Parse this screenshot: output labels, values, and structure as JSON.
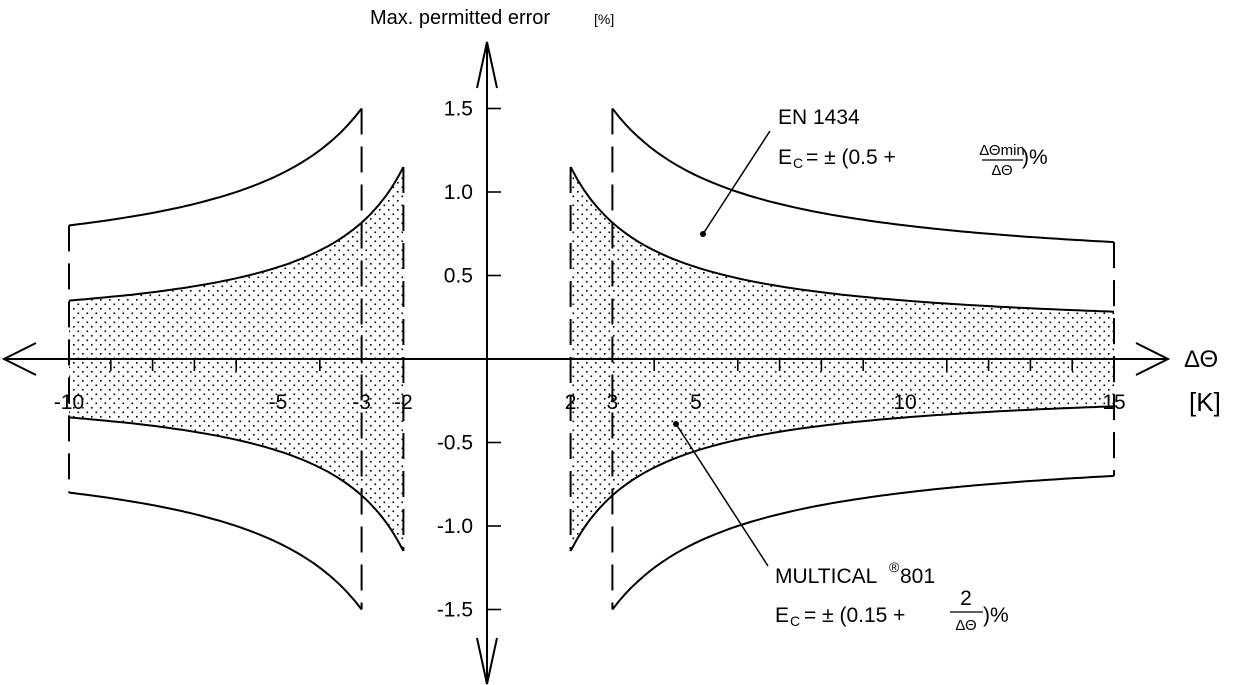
{
  "chart_data": {
    "type": "line",
    "title": "",
    "ylabel": "Max. permitted error",
    "ylabel_unit": "[%]",
    "xlabel": "ΔΘ",
    "xlabel_unit": "[K]",
    "xlim": [
      -10,
      15
    ],
    "ylim": [
      -1.5,
      1.5
    ],
    "x_ticks": [
      -10,
      -5,
      -3,
      -2,
      2,
      3,
      5,
      10,
      15
    ],
    "y_ticks": [
      1.5,
      1.0,
      0.5,
      -0.5,
      -1.0,
      -1.5
    ],
    "y_tick_labels": [
      "1.5",
      "1.0",
      "0.5",
      "-0.5",
      "-1.0",
      "-1.5"
    ],
    "series": [
      {
        "name": "EN 1434",
        "formula": {
          "prefix": "E",
          "sub": "C",
          "eq": "= ± (0.5 + ",
          "num": "ΔΘmin",
          "den": "ΔΘ",
          "suffix": " )%"
        },
        "constant": 0.5,
        "numerator": 3,
        "domain_abs": [
          3,
          15
        ],
        "x": [
          3,
          5,
          10,
          15
        ],
        "upper": [
          1.5,
          1.1,
          0.8,
          0.7
        ],
        "lower": [
          -1.5,
          -1.1,
          -0.8,
          -0.7
        ]
      },
      {
        "name": "MULTICAL",
        "name_sup": "®",
        "name_suffix": " 801",
        "formula": {
          "prefix": "E",
          "sub": "C",
          "eq": "= ± (0.15 + ",
          "num": "2",
          "den": "ΔΘ",
          "suffix": ")%"
        },
        "constant": 0.15,
        "numerator": 2,
        "domain_abs": [
          2,
          15
        ],
        "x": [
          2,
          3,
          5,
          10,
          15
        ],
        "upper": [
          1.15,
          0.82,
          0.55,
          0.35,
          0.28
        ],
        "lower": [
          -1.15,
          -0.82,
          -0.55,
          -0.35,
          -0.28
        ]
      }
    ],
    "grid": false,
    "legend": "annotations"
  }
}
